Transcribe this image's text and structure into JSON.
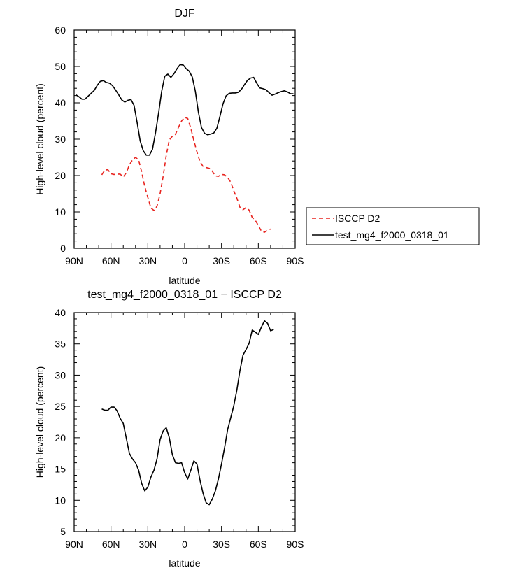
{
  "chart_data": [
    {
      "type": "line",
      "title": "DJF",
      "xlabel": "latitude",
      "ylabel": "High-level cloud (percent)",
      "xlim": [
        90,
        -90
      ],
      "ylim": [
        0,
        60
      ],
      "x_tick_values": [
        90,
        60,
        30,
        0,
        -30,
        -60,
        -90
      ],
      "x_tick_labels": [
        "90N",
        "60N",
        "30N",
        "0",
        "30S",
        "60S",
        "90S"
      ],
      "y_tick_values": [
        0,
        10,
        20,
        30,
        40,
        50,
        60
      ],
      "y_tick_labels": [
        "0",
        "10",
        "20",
        "30",
        "40",
        "50",
        "60"
      ],
      "legend_position": "right",
      "series": [
        {
          "name": "ISCCP D2",
          "color": "#e8231e",
          "dash": "dashed",
          "x": [
            67.5,
            65,
            62.5,
            60,
            57.5,
            55,
            52.5,
            50,
            47.5,
            45,
            42.5,
            40,
            37.5,
            35,
            32.5,
            30,
            27.5,
            25,
            22.5,
            20,
            17.5,
            15,
            12.5,
            10,
            7.5,
            5,
            2.5,
            0,
            -2.5,
            -5,
            -7.5,
            -10,
            -12.5,
            -15,
            -17.5,
            -20,
            -22.5,
            -25,
            -27.5,
            -30,
            -32.5,
            -35,
            -37.5,
            -40,
            -42.5,
            -45,
            -47.5,
            -50,
            -52.5,
            -55,
            -57.5,
            -60,
            -62.5,
            -65,
            -67.5,
            -70,
            -72.5,
            -75,
            -77.5,
            -80,
            -82.5,
            -85,
            -87.5
          ],
          "values": [
            20.2,
            21.5,
            21.6,
            20.5,
            20.3,
            20.4,
            20.4,
            19.6,
            20.8,
            22.9,
            24.3,
            25.0,
            24.3,
            21.0,
            17.0,
            14.0,
            11.1,
            10.4,
            11.6,
            15.0,
            19.8,
            25.5,
            29.8,
            30.8,
            31.3,
            33.3,
            35.0,
            36.0,
            35.7,
            33.0,
            29.6,
            26.5,
            23.8,
            22.5,
            22.2,
            22.0,
            21.2,
            19.9,
            19.8,
            20.3,
            20.2,
            19.5,
            18.2,
            15.8,
            13.8,
            11.3,
            10.6,
            11.2,
            10.5,
            8.5,
            7.7,
            6.3,
            4.7,
            4.4,
            4.9,
            5.3,
            null,
            null,
            null,
            null,
            null,
            null,
            null
          ]
        },
        {
          "name": "test_mg4_f2000_0318_01",
          "color": "#000000",
          "dash": "solid",
          "x": [
            88.6,
            86.2,
            83.7,
            81.2,
            78.7,
            76.2,
            73.7,
            71.2,
            68.7,
            66.2,
            63.7,
            61.2,
            58.7,
            56.2,
            53.7,
            51.2,
            48.7,
            46.2,
            43.7,
            41.2,
            38.7,
            36.2,
            33.7,
            31.2,
            28.7,
            26.2,
            23.7,
            21.2,
            18.7,
            16.2,
            13.7,
            11.2,
            8.7,
            6.2,
            3.7,
            1.2,
            -1.2,
            -3.7,
            -6.2,
            -8.7,
            -11.2,
            -13.7,
            -16.2,
            -18.7,
            -21.2,
            -23.7,
            -26.2,
            -28.7,
            -31.2,
            -33.7,
            -36.2,
            -38.7,
            -41.2,
            -43.7,
            -46.2,
            -48.7,
            -51.2,
            -53.7,
            -56.2,
            -58.7,
            -61.2,
            -63.7,
            -66.2,
            -68.7,
            -71.2,
            -73.7,
            -76.2,
            -78.7,
            -81.2,
            -83.7,
            -86.2,
            -88.6
          ],
          "values": [
            42.2,
            41.7,
            41.0,
            41.0,
            41.8,
            42.6,
            43.4,
            44.8,
            45.9,
            46.1,
            45.6,
            45.4,
            44.7,
            43.5,
            42.2,
            40.8,
            40.2,
            40.7,
            40.9,
            39.3,
            34.6,
            29.5,
            26.8,
            25.6,
            25.6,
            27.2,
            31.8,
            37.2,
            43.2,
            47.3,
            47.9,
            47.0,
            48.0,
            49.4,
            50.5,
            50.4,
            49.4,
            48.7,
            47.1,
            43.2,
            37.4,
            33.2,
            31.6,
            31.2,
            31.4,
            31.7,
            33.0,
            36.2,
            39.7,
            41.9,
            42.6,
            42.7,
            42.7,
            42.9,
            43.7,
            45.0,
            46.2,
            46.8,
            47.0,
            45.4,
            44.1,
            43.9,
            43.6,
            42.8,
            42.1,
            42.4,
            42.8,
            43.1,
            43.3,
            43.0,
            42.5,
            42.5
          ]
        }
      ]
    },
    {
      "type": "line",
      "title": "test_mg4_f2000_0318_01 − ISCCP D2",
      "xlabel": "latitude",
      "ylabel": "High-level cloud (percent)",
      "xlim": [
        90,
        -90
      ],
      "ylim": [
        5,
        40
      ],
      "x_tick_values": [
        90,
        60,
        30,
        0,
        -30,
        -60,
        -90
      ],
      "x_tick_labels": [
        "90N",
        "60N",
        "30N",
        "0",
        "30S",
        "60S",
        "90S"
      ],
      "y_tick_values": [
        5,
        10,
        15,
        20,
        25,
        30,
        35,
        40
      ],
      "y_tick_labels": [
        "5",
        "10",
        "15",
        "20",
        "25",
        "30",
        "35",
        "40"
      ],
      "series": [
        {
          "color": "#000000",
          "dash": "solid",
          "x": [
            67.5,
            65,
            62.5,
            60,
            57.5,
            55,
            52.5,
            50,
            47.5,
            45,
            42.5,
            40,
            37.5,
            35,
            32.5,
            30,
            27.5,
            25,
            22.5,
            20,
            17.5,
            15,
            12.5,
            10,
            7.5,
            5,
            2.5,
            0,
            -2.5,
            -5,
            -7.5,
            -10,
            -12.5,
            -15,
            -17.5,
            -20,
            -22.5,
            -25,
            -27.5,
            -30,
            -32.5,
            -35,
            -37.5,
            -40,
            -42.5,
            -45,
            -47.5,
            -50,
            -52.5,
            -55,
            -57.5,
            -60,
            -62.5,
            -65,
            -67.5,
            -70,
            -72.5,
            -75,
            -77.5,
            -80,
            -82.5,
            -85,
            -87.5,
            -90
          ],
          "values": [
            24.6,
            24.4,
            24.4,
            24.9,
            24.9,
            24.3,
            23.1,
            22.3,
            19.9,
            17.5,
            16.6,
            16.0,
            14.8,
            12.7,
            11.5,
            12.1,
            13.7,
            14.8,
            16.6,
            19.7,
            21.1,
            21.6,
            20.0,
            17.3,
            16.0,
            15.9,
            16.0,
            14.4,
            13.4,
            14.8,
            16.3,
            15.8,
            13.2,
            11.1,
            9.6,
            9.3,
            10.2,
            11.5,
            13.4,
            15.8,
            18.4,
            21.3,
            23.2,
            25.1,
            27.6,
            30.7,
            33.2,
            34.1,
            35.1,
            37.2,
            36.9,
            36.5,
            37.7,
            38.7,
            38.3,
            37.1,
            37.3,
            null,
            null,
            null,
            null,
            null,
            null,
            null
          ]
        }
      ]
    }
  ]
}
